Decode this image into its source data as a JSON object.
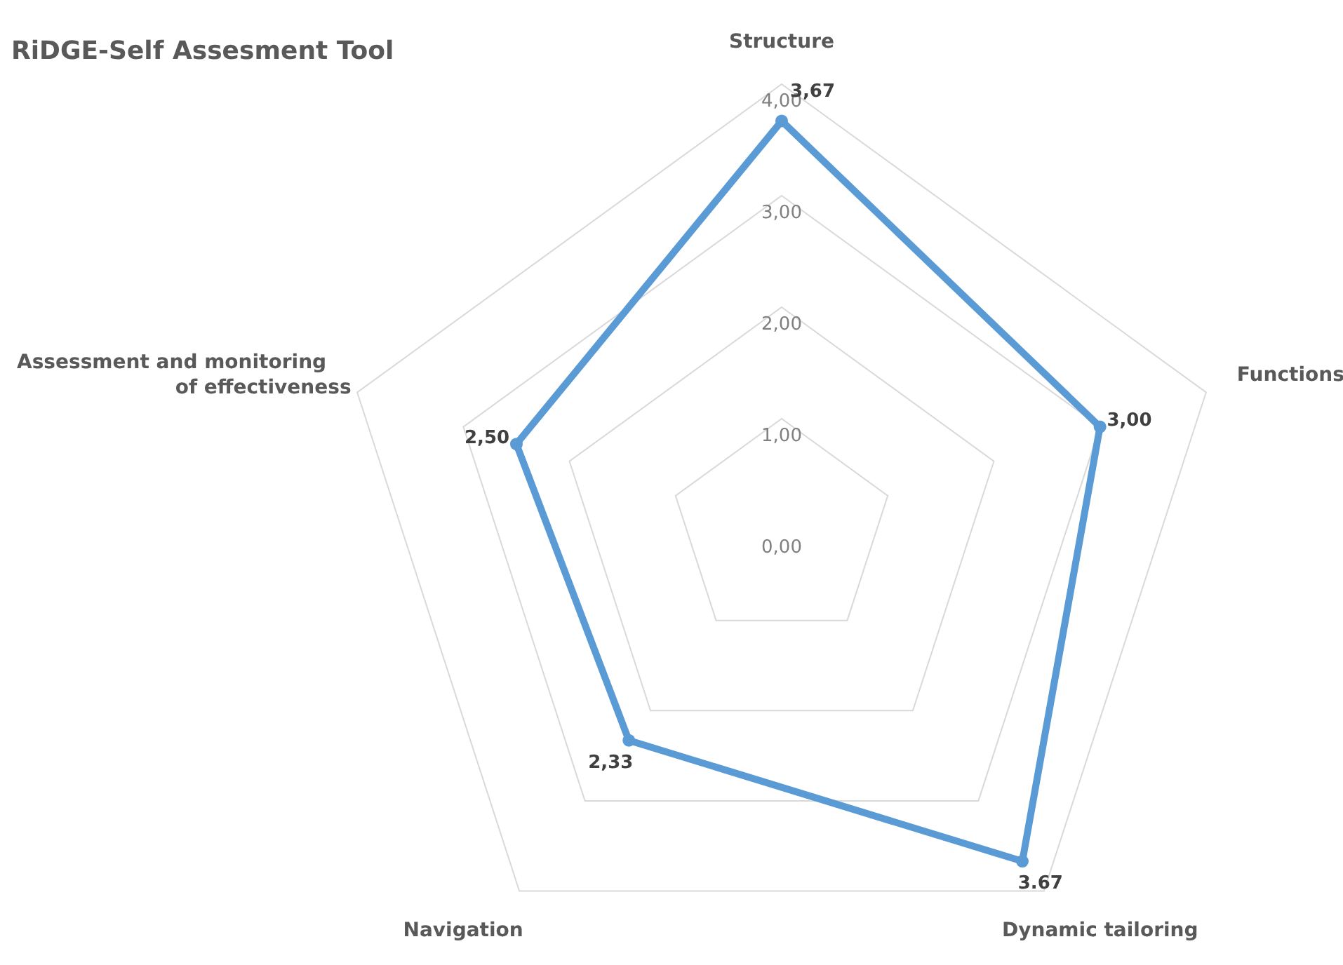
{
  "chart_data": {
    "type": "radar",
    "title": "RiDGE-Self Assesment Tool",
    "categories": [
      "Structure",
      "Functions",
      "Dynamic tailoring",
      "Navigation",
      "Assessment and monitoring of effectiveness"
    ],
    "series": [
      {
        "color": "#5b9bd5",
        "values": [
          3.67,
          3.0,
          3.67,
          2.33,
          2.5
        ],
        "value_labels": [
          "3,67",
          "3,00",
          "3.67",
          "2,33",
          "2,50"
        ]
      }
    ],
    "ylim": [
      0,
      4
    ],
    "yticks": [
      {
        "value": 0,
        "label": "0,00"
      },
      {
        "value": 1,
        "label": "1,00"
      },
      {
        "value": 2,
        "label": "2,00"
      },
      {
        "value": 3,
        "label": "3,00"
      },
      {
        "value": 4,
        "label": "4,00"
      }
    ],
    "grid": true,
    "marker": "circle",
    "line_style": "solid"
  }
}
